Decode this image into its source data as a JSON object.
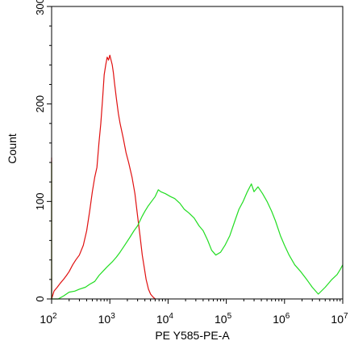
{
  "colors": {
    "axis": "#000000",
    "background": "#ffffff"
  },
  "chart_data": {
    "type": "line",
    "xlabel": "PE Y585-PE-A",
    "ylabel": "Count",
    "x_scale": "log",
    "xlim": [
      100,
      10000000
    ],
    "ylim": [
      0,
      300
    ],
    "x_ticks": [
      {
        "value": 100,
        "base": "10",
        "exp": "2"
      },
      {
        "value": 1000,
        "base": "10",
        "exp": "3"
      },
      {
        "value": 10000,
        "base": "10",
        "exp": "4"
      },
      {
        "value": 100000,
        "base": "10",
        "exp": "5"
      },
      {
        "value": 1000000,
        "base": "10",
        "exp": "6"
      },
      {
        "value": 10000000,
        "base": "10",
        "exp": "7"
      }
    ],
    "y_ticks": [
      {
        "value": 0,
        "label": "0"
      },
      {
        "value": 100,
        "label": "100"
      },
      {
        "value": 200,
        "label": "200"
      },
      {
        "value": 300,
        "label": "300"
      }
    ],
    "grid": false,
    "legend": "none",
    "series": [
      {
        "color": "#e01010",
        "points": [
          [
            100,
            145
          ],
          [
            100,
            0
          ],
          [
            110,
            8
          ],
          [
            125,
            12
          ],
          [
            140,
            16
          ],
          [
            160,
            20
          ],
          [
            180,
            24
          ],
          [
            200,
            28
          ],
          [
            230,
            35
          ],
          [
            260,
            40
          ],
          [
            300,
            45
          ],
          [
            350,
            55
          ],
          [
            400,
            70
          ],
          [
            450,
            90
          ],
          [
            500,
            110
          ],
          [
            550,
            125
          ],
          [
            600,
            135
          ],
          [
            650,
            160
          ],
          [
            700,
            180
          ],
          [
            750,
            205
          ],
          [
            800,
            230
          ],
          [
            850,
            240
          ],
          [
            900,
            248
          ],
          [
            950,
            245
          ],
          [
            1000,
            250
          ],
          [
            1050,
            245
          ],
          [
            1100,
            240
          ],
          [
            1150,
            232
          ],
          [
            1200,
            222
          ],
          [
            1300,
            205
          ],
          [
            1400,
            190
          ],
          [
            1500,
            180
          ],
          [
            1700,
            165
          ],
          [
            1900,
            150
          ],
          [
            2100,
            140
          ],
          [
            2400,
            125
          ],
          [
            2700,
            108
          ],
          [
            3000,
            85
          ],
          [
            3300,
            65
          ],
          [
            3600,
            45
          ],
          [
            3900,
            32
          ],
          [
            4200,
            20
          ],
          [
            4600,
            10
          ],
          [
            5000,
            5
          ],
          [
            5500,
            2
          ],
          [
            6000,
            0
          ]
        ]
      },
      {
        "color": "#22dd22",
        "points": [
          [
            100,
            140
          ],
          [
            100,
            0
          ],
          [
            130,
            0
          ],
          [
            160,
            3
          ],
          [
            200,
            7
          ],
          [
            250,
            8
          ],
          [
            300,
            10
          ],
          [
            380,
            12
          ],
          [
            450,
            15
          ],
          [
            550,
            18
          ],
          [
            650,
            24
          ],
          [
            750,
            28
          ],
          [
            900,
            33
          ],
          [
            1100,
            38
          ],
          [
            1300,
            43
          ],
          [
            1500,
            48
          ],
          [
            1800,
            55
          ],
          [
            2200,
            63
          ],
          [
            2600,
            70
          ],
          [
            3000,
            75
          ],
          [
            3600,
            85
          ],
          [
            4000,
            90
          ],
          [
            4500,
            95
          ],
          [
            5200,
            100
          ],
          [
            6000,
            105
          ],
          [
            6800,
            112
          ],
          [
            7500,
            110
          ],
          [
            9000,
            108
          ],
          [
            11000,
            105
          ],
          [
            13000,
            103
          ],
          [
            16000,
            98
          ],
          [
            19000,
            92
          ],
          [
            23000,
            88
          ],
          [
            28000,
            83
          ],
          [
            34000,
            75
          ],
          [
            40000,
            70
          ],
          [
            48000,
            60
          ],
          [
            56000,
            50
          ],
          [
            66000,
            45
          ],
          [
            80000,
            48
          ],
          [
            95000,
            55
          ],
          [
            115000,
            65
          ],
          [
            140000,
            80
          ],
          [
            165000,
            92
          ],
          [
            195000,
            100
          ],
          [
            230000,
            110
          ],
          [
            270000,
            118
          ],
          [
            300000,
            110
          ],
          [
            350000,
            115
          ],
          [
            420000,
            108
          ],
          [
            500000,
            100
          ],
          [
            600000,
            90
          ],
          [
            700000,
            80
          ],
          [
            850000,
            65
          ],
          [
            1000000,
            55
          ],
          [
            1200000,
            45
          ],
          [
            1500000,
            35
          ],
          [
            1900000,
            28
          ],
          [
            2400000,
            20
          ],
          [
            3000000,
            12
          ],
          [
            3800000,
            5
          ],
          [
            5000000,
            12
          ],
          [
            6500000,
            20
          ],
          [
            8000000,
            25
          ],
          [
            9000000,
            30
          ],
          [
            10000000,
            35
          ]
        ]
      }
    ]
  }
}
